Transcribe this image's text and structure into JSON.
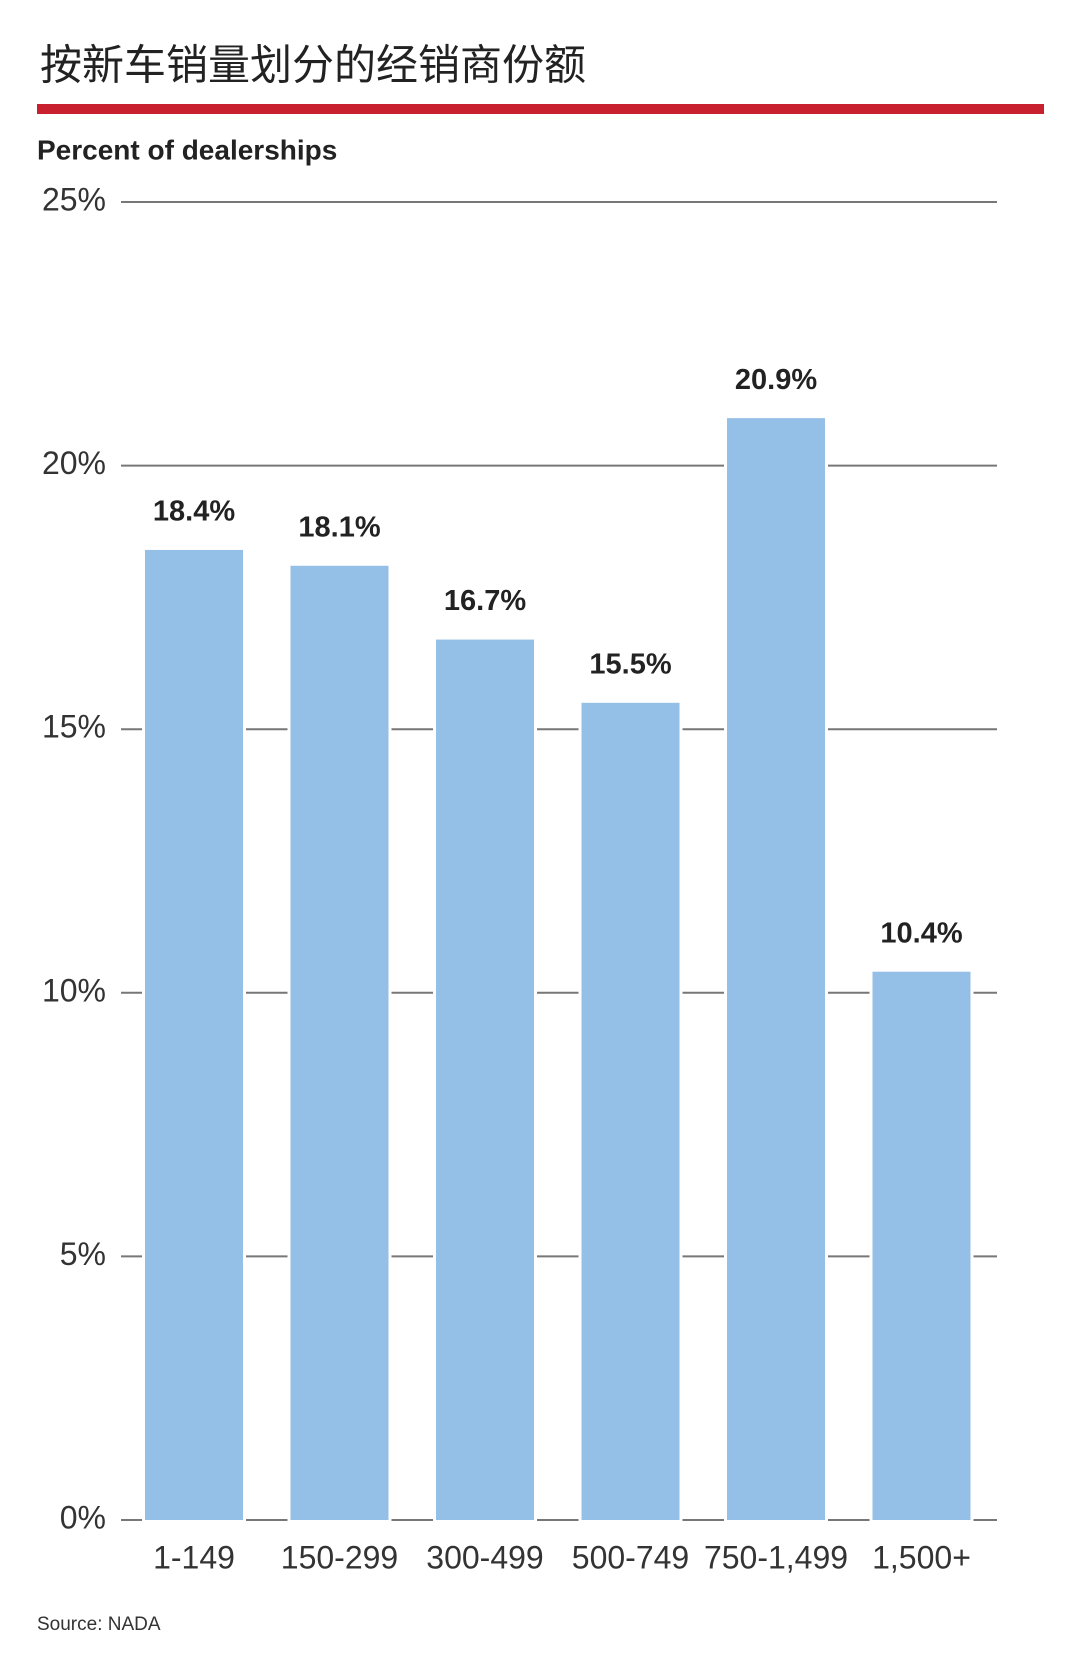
{
  "chart_data": {
    "type": "bar",
    "title": "按新车销量划分的经销商份额",
    "y_label": "Percent of dealerships",
    "categories": [
      "1-149",
      "150-299",
      "300-499",
      "500-749",
      "750-1,499",
      "1,500+"
    ],
    "values": [
      18.4,
      18.1,
      16.7,
      15.5,
      20.9,
      10.4
    ],
    "value_labels": [
      "18.4%",
      "18.1%",
      "16.7%",
      "15.5%",
      "20.9%",
      "10.4%"
    ],
    "color": "#94bfe6",
    "ylim": [
      0,
      25
    ],
    "yticks": [
      {
        "value": 0,
        "label": "0%"
      },
      {
        "value": 5,
        "label": "5%"
      },
      {
        "value": 10,
        "label": "10%"
      },
      {
        "value": 15,
        "label": "15%"
      },
      {
        "value": 20,
        "label": "20%"
      },
      {
        "value": 25,
        "label": "25%"
      }
    ],
    "grid": true,
    "source": "Source: NADA"
  }
}
